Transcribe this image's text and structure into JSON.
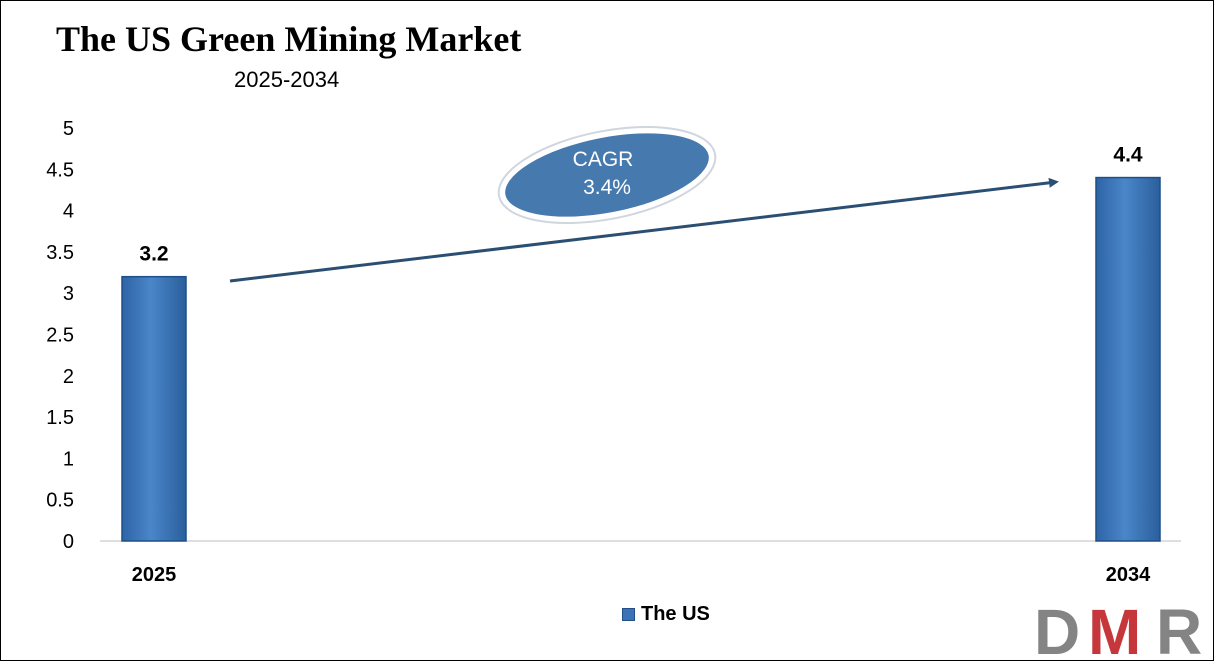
{
  "colors": {
    "bar_fill": "#3b73b6",
    "bar_edge": "#1f4f88",
    "arrow": "#2a4f73",
    "ellipse_fill": "#4679ad",
    "logo_gray": "#848484",
    "logo_red": "#c5373a"
  },
  "chart_data": {
    "type": "bar",
    "title": "The US Green Mining Market",
    "subtitle": "2025-2034",
    "categories": [
      "2025",
      "2034"
    ],
    "series": [
      {
        "name": "The US",
        "values": [
          3.2,
          4.4
        ]
      }
    ],
    "data_labels": [
      "3.2",
      "4.4"
    ],
    "yticks": [
      "0",
      "0.5",
      "1",
      "1.5",
      "2",
      "2.5",
      "3",
      "3.5",
      "4",
      "4.5",
      "5"
    ],
    "ylim": [
      0,
      5
    ],
    "grid": false,
    "legend_position": "bottom",
    "annotation": {
      "line1": "CAGR",
      "line2": "3.4%"
    }
  },
  "logo": {
    "text": "DMR"
  }
}
